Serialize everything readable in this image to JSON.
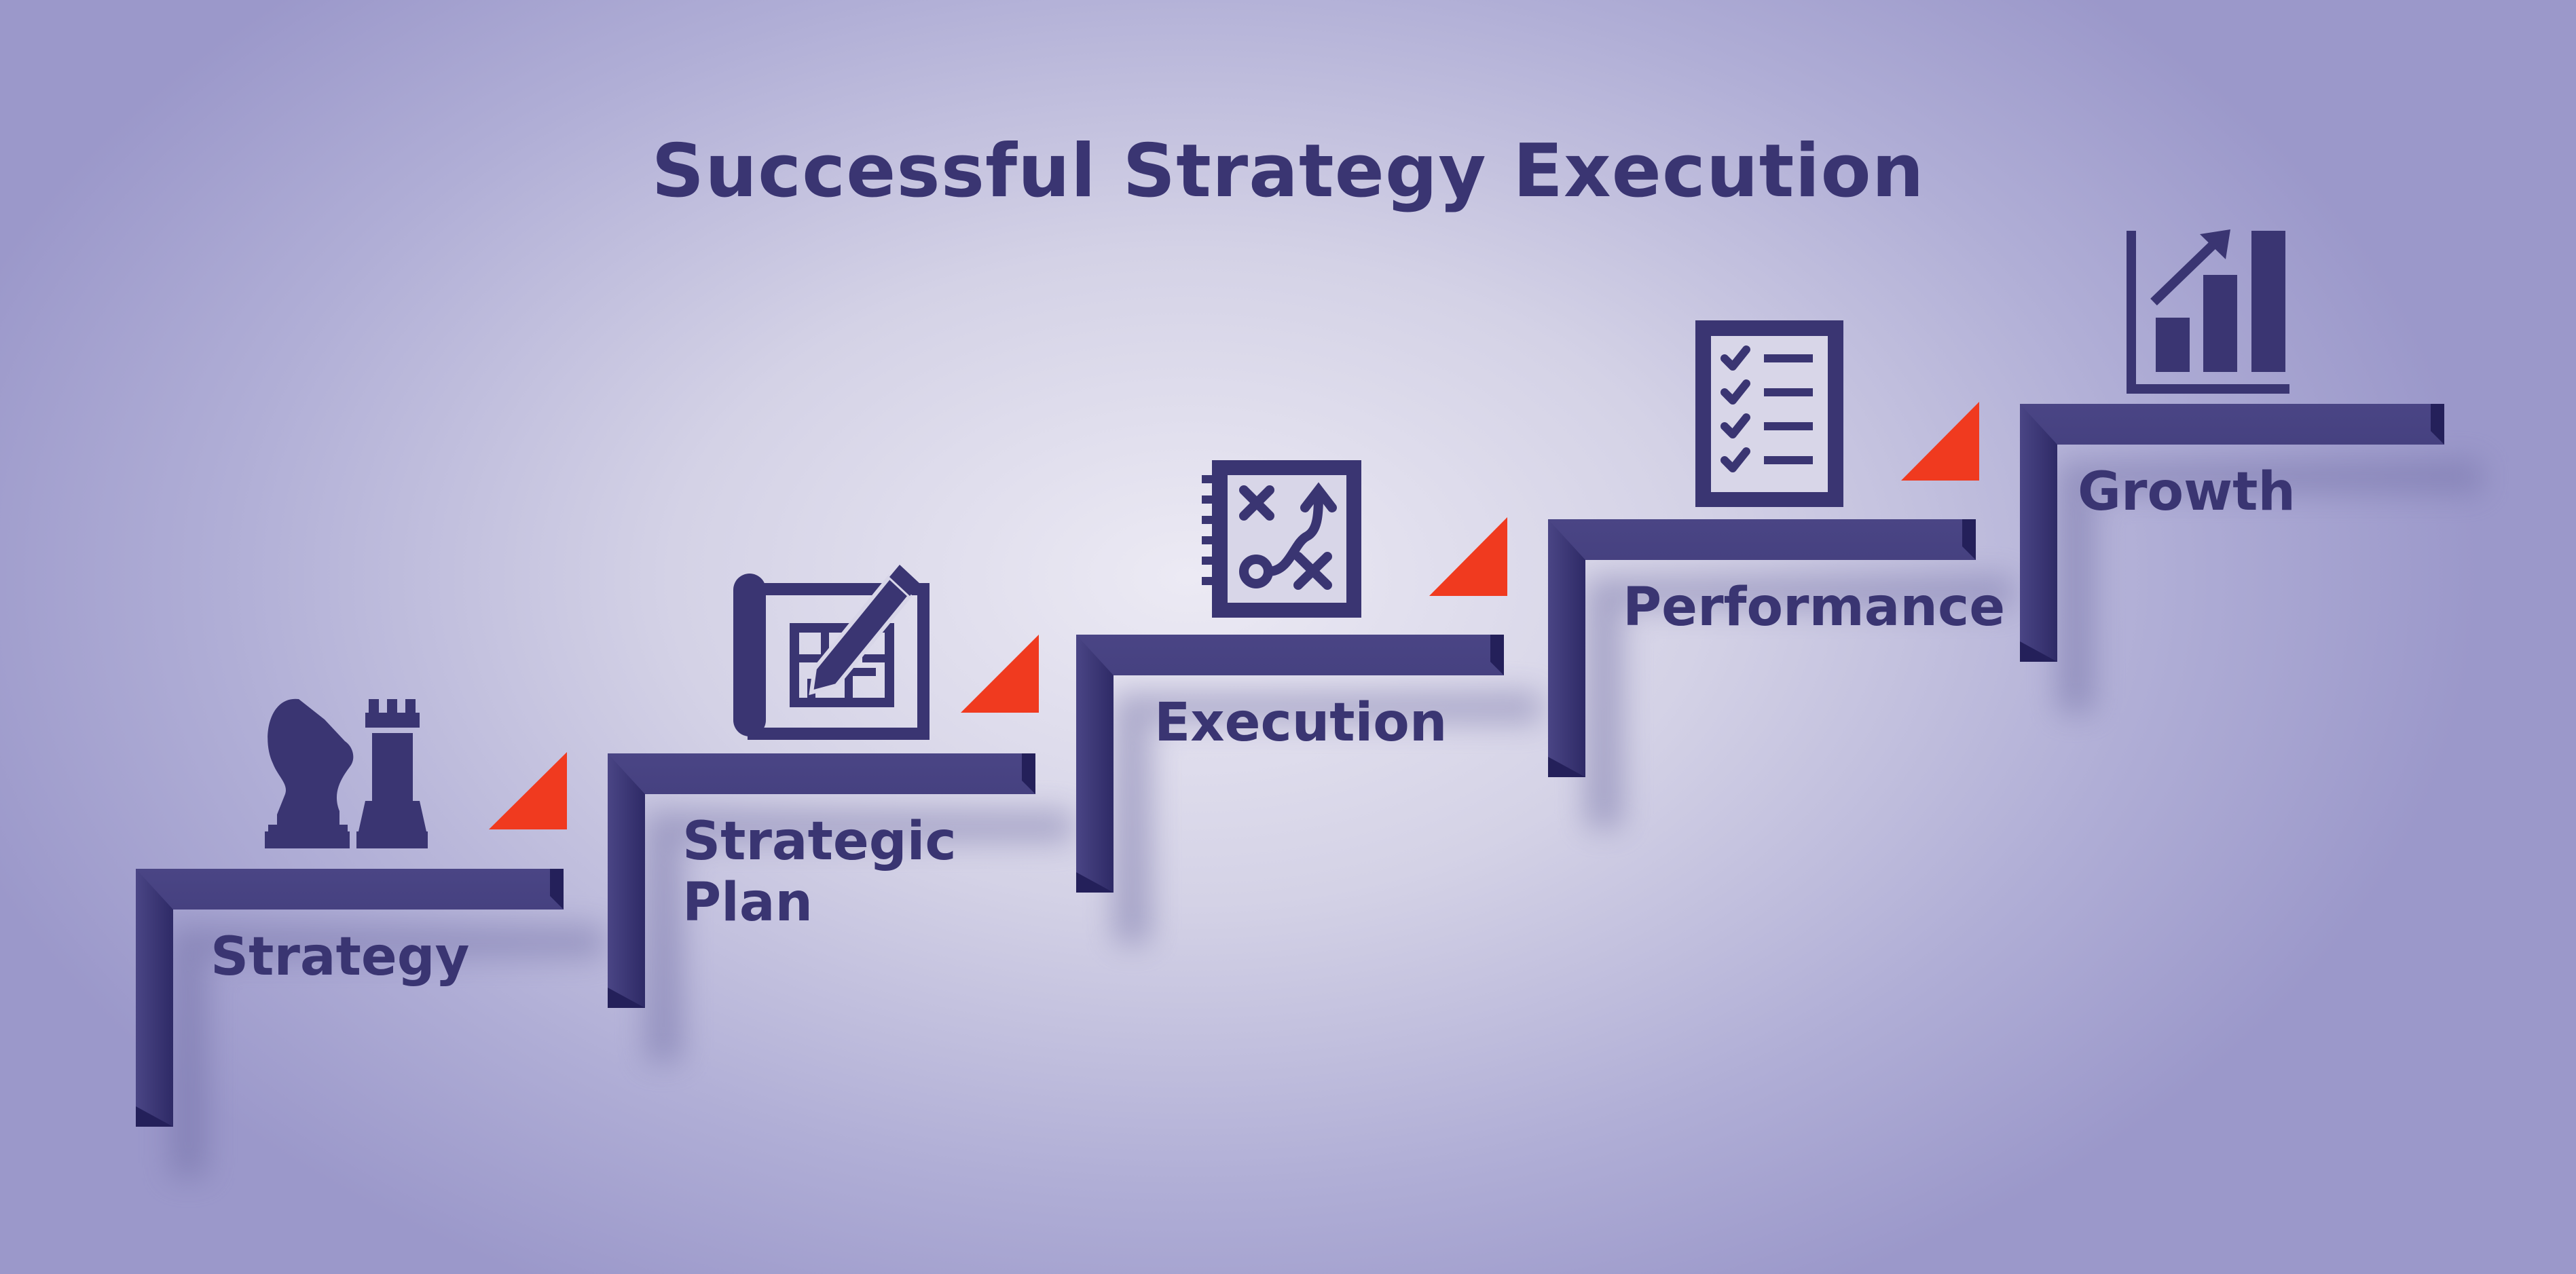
{
  "title": "Successful Strategy Execution",
  "steps": [
    {
      "label": "Strategy",
      "icon": "chess-pieces-icon"
    },
    {
      "label": "Strategic\nPlan",
      "icon": "blueprint-pencil-icon"
    },
    {
      "label": "Execution",
      "icon": "game-plan-board-icon"
    },
    {
      "label": "Performance",
      "icon": "checklist-icon"
    },
    {
      "label": "Growth",
      "icon": "bar-chart-growth-icon"
    }
  ],
  "colors": {
    "step": "#3a3572",
    "flag": "#f03a1f",
    "text": "#3a3572"
  }
}
